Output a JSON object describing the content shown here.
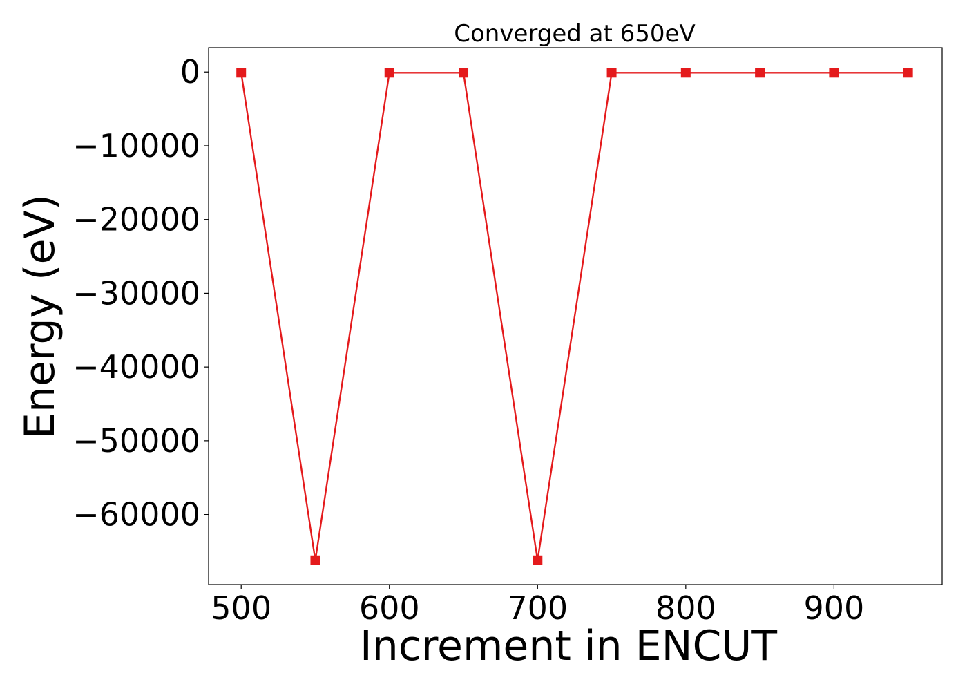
{
  "chart_data": {
    "type": "line",
    "title": "Converged at 650eV",
    "xlabel": "Increment in ENCUT",
    "ylabel": "Energy (eV)",
    "x": [
      500,
      550,
      600,
      650,
      700,
      750,
      800,
      850,
      900,
      950
    ],
    "series": [
      {
        "values": [
          -100,
          -66200,
          -100,
          -100,
          -66200,
          -100,
          -100,
          -100,
          -100,
          -100
        ],
        "color": "#e41a1c",
        "marker": "square"
      }
    ],
    "xlim": [
      478,
      973
    ],
    "ylim": [
      -69500,
      3300
    ],
    "xticks": [
      500,
      600,
      700,
      800,
      900
    ],
    "xtick_labels": [
      "500",
      "600",
      "700",
      "800",
      "900"
    ],
    "yticks": [
      0,
      -10000,
      -20000,
      -30000,
      -40000,
      -50000,
      -60000
    ],
    "ytick_labels": [
      "0",
      "−10000",
      "−20000",
      "−30000",
      "−40000",
      "−50000",
      "−60000"
    ],
    "grid": false,
    "legend": "none"
  }
}
